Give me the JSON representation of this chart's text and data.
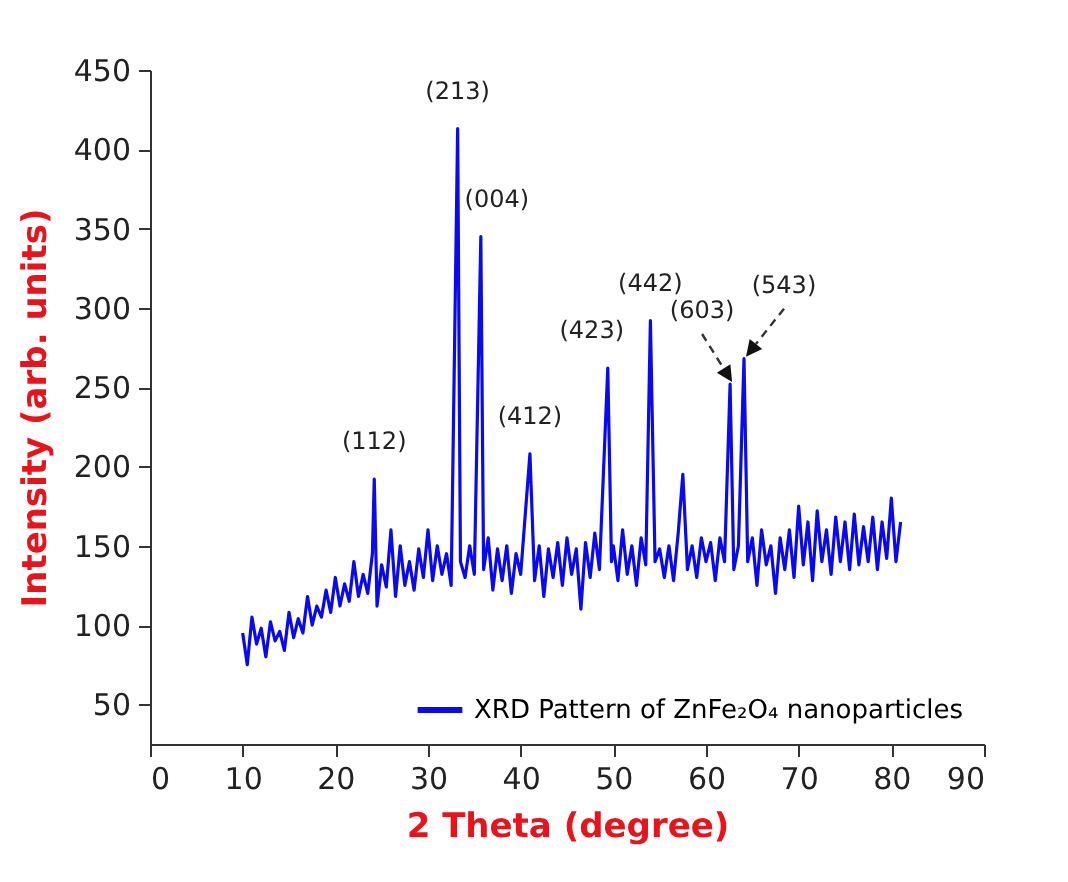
{
  "chart_data": {
    "type": "line",
    "xlabel": "2 Theta (degree)",
    "ylabel": "Intensity (arb. units)",
    "xlim": [
      0,
      90
    ],
    "xticks": [
      0,
      10,
      20,
      30,
      40,
      50,
      60,
      70,
      80,
      90
    ],
    "ylim": [
      25,
      450
    ],
    "yticks": [
      50,
      100,
      150,
      200,
      250,
      300,
      350,
      400,
      450
    ],
    "grid": false,
    "legend": "bottom right",
    "line_style": "solid",
    "marker": "none",
    "x": [
      10,
      10.5,
      11,
      11.5,
      12,
      12.5,
      13,
      13.5,
      14,
      14.5,
      15,
      15.5,
      16,
      16.5,
      17,
      17.5,
      18,
      18.5,
      19,
      19.5,
      20,
      20.5,
      21,
      21.5,
      22,
      22.5,
      23,
      23.5,
      24,
      24.2,
      24.5,
      25,
      25.5,
      26,
      26.5,
      27,
      27.5,
      28,
      28.5,
      29,
      29.5,
      30,
      30.5,
      31,
      31.5,
      32,
      32.5,
      33.2,
      33.5,
      34,
      34.5,
      35,
      35.7,
      36,
      36.5,
      37,
      37.5,
      38,
      38.5,
      39,
      39.5,
      40,
      41,
      41.5,
      42,
      42.5,
      43,
      43.5,
      44,
      44.5,
      45,
      45.5,
      46,
      46.5,
      47,
      47.5,
      48,
      48.5,
      49.4,
      49.8,
      50,
      50.5,
      51,
      51.5,
      52,
      52.5,
      53,
      53.5,
      54,
      54.5,
      55,
      55.5,
      56,
      56.5,
      57,
      57.5,
      58,
      58.5,
      59,
      59.5,
      60,
      60.5,
      61,
      61.5,
      62,
      62.6,
      63,
      63.5,
      64.1,
      64.5,
      65,
      65.5,
      66,
      66.5,
      67,
      67.5,
      68,
      68.5,
      69,
      69.5,
      70,
      70.5,
      71,
      71.5,
      72,
      72.5,
      73,
      73.5,
      74,
      74.5,
      75,
      75.5,
      76,
      76.5,
      77,
      77.5,
      78,
      78.5,
      79,
      79.5,
      80,
      80.5,
      81
    ],
    "series": [
      {
        "name": "XRD Pattern of ZnFe₂O₄ nanoparticles",
        "color": "#0a0af0",
        "values": [
          95,
          75,
          105,
          88,
          98,
          80,
          102,
          90,
          96,
          84,
          108,
          92,
          104,
          95,
          118,
          100,
          112,
          105,
          122,
          108,
          130,
          112,
          126,
          115,
          140,
          118,
          132,
          120,
          145,
          192,
          112,
          138,
          124,
          160,
          118,
          150,
          125,
          140,
          122,
          148,
          130,
          160,
          128,
          150,
          132,
          145,
          125,
          413,
          140,
          130,
          150,
          132,
          345,
          135,
          155,
          122,
          148,
          128,
          150,
          120,
          145,
          132,
          208,
          128,
          150,
          118,
          148,
          130,
          152,
          125,
          155,
          132,
          148,
          110,
          152,
          130,
          158,
          135,
          262,
          140,
          150,
          128,
          160,
          132,
          150,
          125,
          155,
          138,
          292,
          140,
          148,
          130,
          150,
          128,
          158,
          195,
          135,
          150,
          130,
          155,
          140,
          152,
          128,
          155,
          140,
          252,
          135,
          150,
          268,
          140,
          155,
          125,
          160,
          138,
          150,
          120,
          155,
          135,
          160,
          130,
          175,
          138,
          165,
          128,
          172,
          140,
          160,
          132,
          168,
          140,
          165,
          135,
          170,
          138,
          162,
          140,
          168,
          135,
          165,
          142,
          180,
          140,
          165
        ]
      }
    ],
    "annotations": [
      {
        "text": "(112)",
        "x": 24.2,
        "y": 192
      },
      {
        "text": "(213)",
        "x": 33.2,
        "y": 413
      },
      {
        "text": "(004)",
        "x": 35.7,
        "y": 345
      },
      {
        "text": "(412)",
        "x": 41,
        "y": 208
      },
      {
        "text": "(423)",
        "x": 49.4,
        "y": 262
      },
      {
        "text": "(442)",
        "x": 54,
        "y": 292
      },
      {
        "text": "(603)",
        "x": 62.6,
        "y": 252
      },
      {
        "text": "(543)",
        "x": 64.1,
        "y": 268
      }
    ]
  }
}
